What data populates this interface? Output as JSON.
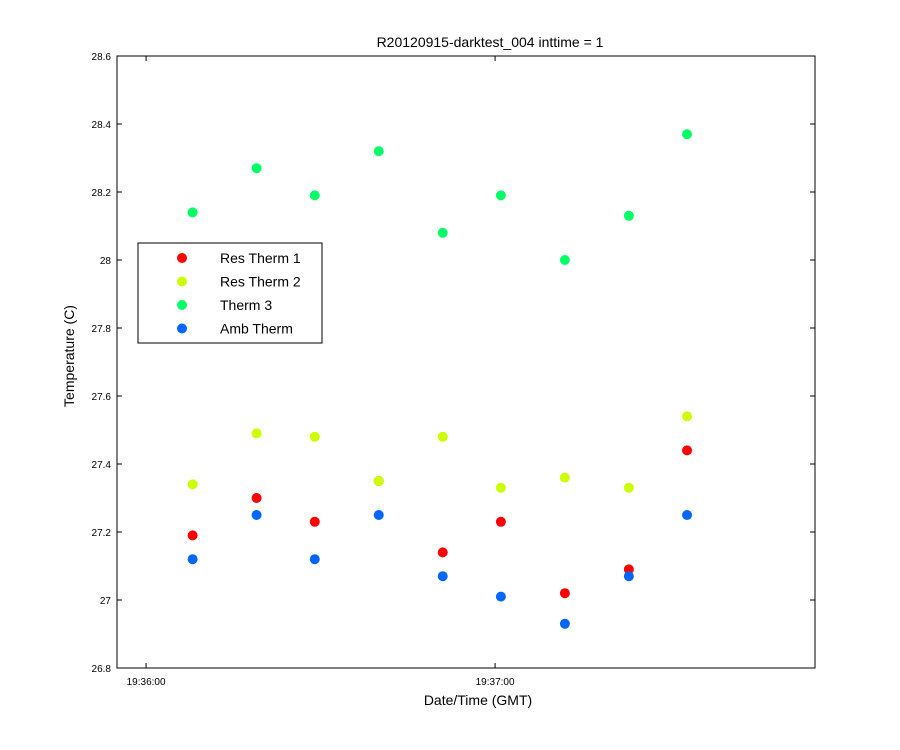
{
  "chart_data": {
    "type": "scatter",
    "title": "R20120915-darktest_004 inttime = 1",
    "xlabel": "Date/Time (GMT)",
    "ylabel": "Temperature (C)",
    "ylim": [
      26.8,
      28.6
    ],
    "yticks": [
      26.8,
      27,
      27.2,
      27.4,
      27.6,
      27.8,
      28,
      28.2,
      28.4,
      28.6
    ],
    "ytick_labels": [
      "26.8",
      "27",
      "27.2",
      "27.4",
      "27.6",
      "27.8",
      "28",
      "28.2",
      "28.4",
      "28.6"
    ],
    "xlim": [
      "19:35:55",
      "19:37:55"
    ],
    "xticks": [
      "19:36:00",
      "19:37:00"
    ],
    "xtick_labels": [
      "19:36:00",
      "19:37:00"
    ],
    "grid": false,
    "legend_position": "upper-left",
    "x": [
      "19:36:08",
      "19:36:19",
      "19:36:29",
      "19:36:40",
      "19:36:51",
      "19:37:01",
      "19:37:12",
      "19:37:23",
      "19:37:33"
    ],
    "series": [
      {
        "name": "Res Therm 1",
        "color": "#ff0000",
        "values": [
          27.19,
          27.3,
          27.23,
          27.35,
          27.14,
          27.23,
          27.02,
          27.09,
          27.44
        ]
      },
      {
        "name": "Res Therm 2",
        "color": "#ccff00",
        "values": [
          27.34,
          27.49,
          27.48,
          27.35,
          27.48,
          27.33,
          27.36,
          27.33,
          27.54
        ]
      },
      {
        "name": "Therm 3",
        "color": "#00ff66",
        "values": [
          28.14,
          28.27,
          28.19,
          28.32,
          28.08,
          28.19,
          28.0,
          28.13,
          28.37
        ]
      },
      {
        "name": "Amb Therm",
        "color": "#0066ff",
        "values": [
          27.12,
          27.25,
          27.12,
          27.25,
          27.07,
          27.01,
          26.93,
          27.07,
          27.25
        ]
      }
    ]
  }
}
